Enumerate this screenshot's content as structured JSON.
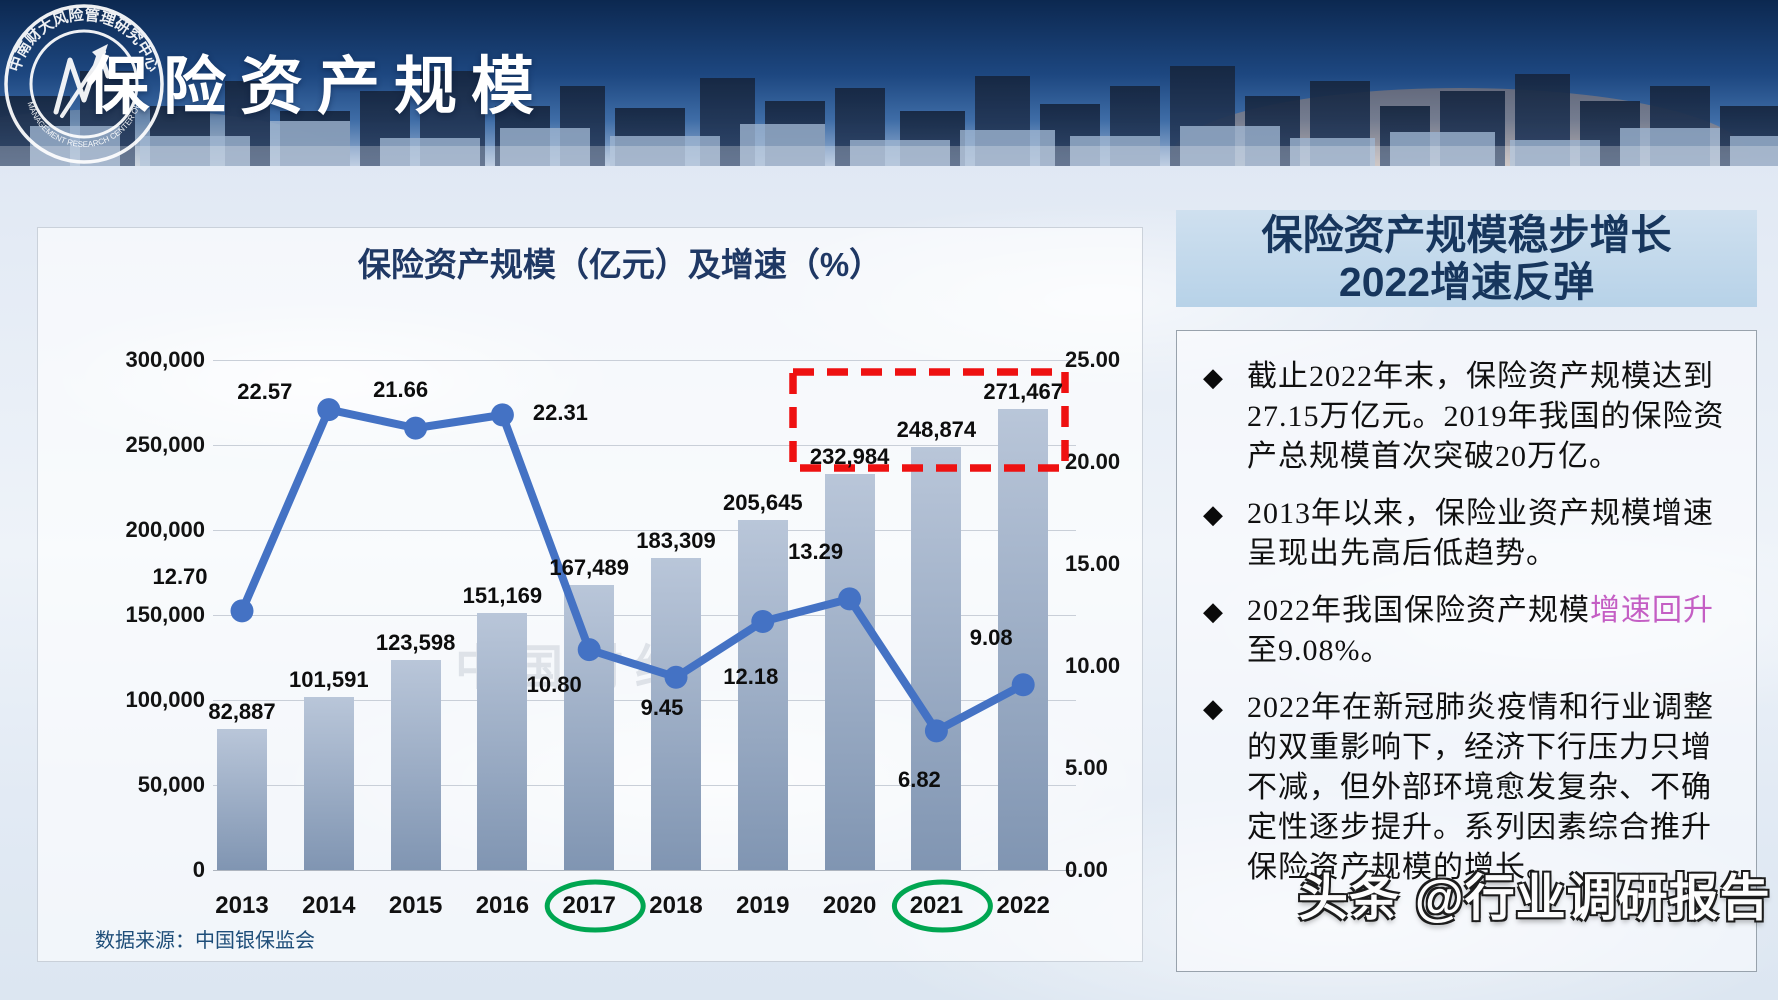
{
  "header": {
    "title": "保险资产规模",
    "logo": {
      "ring_text_top": "中南财大风险管理研究中心",
      "ring_text_bottom": "RISK MANAGEMENT RESEARCH CENTER OF ZUEL"
    }
  },
  "chart_data": {
    "type": "combo",
    "title": "保险资产规模（亿元）及增速（%）",
    "categories": [
      "2013",
      "2014",
      "2015",
      "2016",
      "2017",
      "2018",
      "2019",
      "2020",
      "2021",
      "2022"
    ],
    "series": [
      {
        "name": "保险资产规模（亿元）",
        "type": "bar",
        "axis": "left",
        "values": [
          82887,
          101591,
          123598,
          151169,
          167489,
          183309,
          205645,
          232984,
          248874,
          271467
        ]
      },
      {
        "name": "增速（%）",
        "type": "line",
        "axis": "right",
        "values": [
          12.7,
          22.57,
          21.66,
          22.31,
          10.8,
          9.45,
          12.18,
          13.29,
          6.82,
          9.08
        ]
      }
    ],
    "left_axis": {
      "min": 0,
      "max": 300000,
      "step": 50000
    },
    "right_axis": {
      "min": 0,
      "max": 25,
      "step": 5
    },
    "grid": true,
    "legend": "none",
    "source": "数据来源：中国银保监会",
    "faint_watermark": "中国财经",
    "annotations": {
      "red_dashed_box_years": [
        "2020",
        "2021",
        "2022"
      ],
      "circled_years": [
        "2017",
        "2021"
      ]
    }
  },
  "panel": {
    "title_line1": "保险资产规模稳步增长",
    "title_line2": "2022增速反弹",
    "bullet_glyph": "◆",
    "bullets": [
      {
        "segments": [
          {
            "text": "截止2022年末，保险资产规模达到27.15万亿元。2019年我国的保险资产总规模首次突破20万亿。"
          }
        ]
      },
      {
        "segments": [
          {
            "text": "2013年以来，保险业资产规模增速呈现出先高后低趋势。"
          }
        ]
      },
      {
        "segments": [
          {
            "text": "2022年我国保险资产规模"
          },
          {
            "text": "增速回升",
            "color": "#c45ec4"
          },
          {
            "text": "至9.08%。"
          }
        ]
      },
      {
        "segments": [
          {
            "text": "2022年在新冠肺炎疫情和行业调整的双重影响下，经济下行压力只增不减，但外部环境愈发复杂、不确定性逐步提升。系列因素综合推升保险资产规模的增长。"
          }
        ]
      }
    ]
  },
  "footer_watermark": "头条 @行业调研报告",
  "colors": {
    "line": "#4472c4",
    "bar_top": "#b9c6d9",
    "bar_bottom": "#8095b2",
    "red_box": "#ee1111",
    "green_circle": "#00a651",
    "title_navy": "#1f3864",
    "panel_blue": "#bdd7ee"
  }
}
